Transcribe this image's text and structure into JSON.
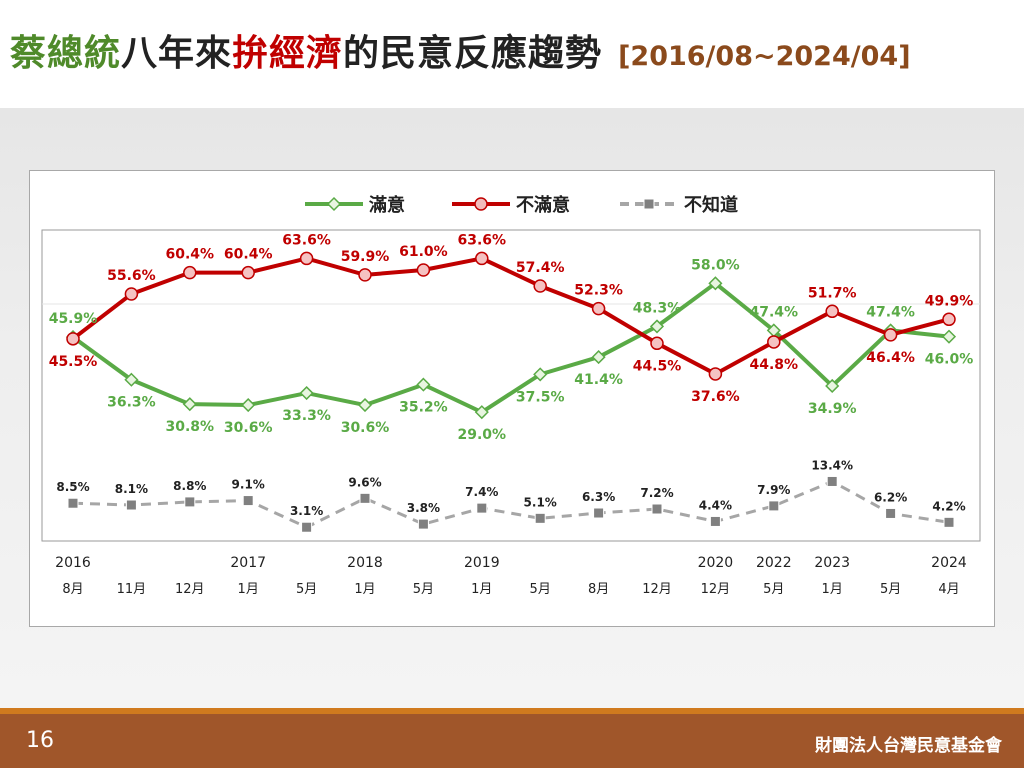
{
  "slide": {
    "title_segments": [
      {
        "text": "蔡總統",
        "color": "#4f8a2a"
      },
      {
        "text": "八年來",
        "color": "#222222"
      },
      {
        "text": "拚經濟",
        "color": "#c00000"
      },
      {
        "text": "的民意反應趨勢",
        "color": "#222222"
      }
    ],
    "date_range": "[2016/08~2024/04]",
    "page_number": "16",
    "organization": "財團法人台灣民意基金會"
  },
  "colors": {
    "satisfied": "#5aaa46",
    "dissatisfied": "#c00000",
    "unknown": "#a6a6a6",
    "date_range": "#8b4a1c",
    "footer": "#a0562a",
    "footer_line": "#d07a1e"
  },
  "chart_data": {
    "type": "line",
    "title": "",
    "xlabel": "",
    "ylabel": "",
    "ylim": [
      0,
      70
    ],
    "legend_position": "top-center",
    "grid": false,
    "categories": [
      {
        "year": "2016",
        "month": "8月"
      },
      {
        "year": "",
        "month": "11月"
      },
      {
        "year": "",
        "month": "12月"
      },
      {
        "year": "2017",
        "month": "1月"
      },
      {
        "year": "",
        "month": "5月"
      },
      {
        "year": "2018",
        "month": "1月"
      },
      {
        "year": "",
        "month": "5月"
      },
      {
        "year": "2019",
        "month": "1月"
      },
      {
        "year": "",
        "month": "5月"
      },
      {
        "year": "",
        "month": "8月"
      },
      {
        "year": "",
        "month": "12月"
      },
      {
        "year": "2020",
        "month": "12月"
      },
      {
        "year": "2022",
        "month": "5月"
      },
      {
        "year": "2023",
        "month": "1月"
      },
      {
        "year": "",
        "month": "5月"
      },
      {
        "year": "2024",
        "month": "4月"
      }
    ],
    "series": [
      {
        "name": "滿意",
        "key": "satisfied",
        "values": [
          45.9,
          36.3,
          30.8,
          30.6,
          33.3,
          30.6,
          35.2,
          29.0,
          37.5,
          41.4,
          48.3,
          58.0,
          47.4,
          34.9,
          47.4,
          46.0
        ],
        "labels": [
          "45.9%",
          "36.3%",
          "30.8%",
          "30.6%",
          "33.3%",
          "30.6%",
          "35.2%",
          "29.0%",
          "37.5%",
          "41.4%",
          "48.3%",
          "58.0%",
          "47.4%",
          "34.9%",
          "47.4%",
          "46.0%"
        ]
      },
      {
        "name": "不滿意",
        "key": "dissatisfied",
        "values": [
          45.5,
          55.6,
          60.4,
          60.4,
          63.6,
          59.9,
          61.0,
          63.6,
          57.4,
          52.3,
          44.5,
          37.6,
          44.8,
          51.7,
          46.4,
          49.9
        ],
        "labels": [
          "45.5%",
          "55.6%",
          "60.4%",
          "60.4%",
          "63.6%",
          "59.9%",
          "61.0%",
          "63.6%",
          "57.4%",
          "52.3%",
          "44.5%",
          "37.6%",
          "44.8%",
          "51.7%",
          "46.4%",
          "49.9%"
        ]
      },
      {
        "name": "不知道",
        "key": "unknown",
        "values": [
          8.5,
          8.1,
          8.8,
          9.1,
          3.1,
          9.6,
          3.8,
          7.4,
          5.1,
          6.3,
          7.2,
          4.4,
          7.9,
          13.4,
          6.2,
          4.2
        ],
        "labels": [
          "8.5%",
          "8.1%",
          "8.8%",
          "9.1%",
          "3.1%",
          "9.6%",
          "3.8%",
          "7.4%",
          "5.1%",
          "6.3%",
          "7.2%",
          "4.4%",
          "7.9%",
          "13.4%",
          "6.2%",
          "4.2%"
        ]
      }
    ]
  }
}
